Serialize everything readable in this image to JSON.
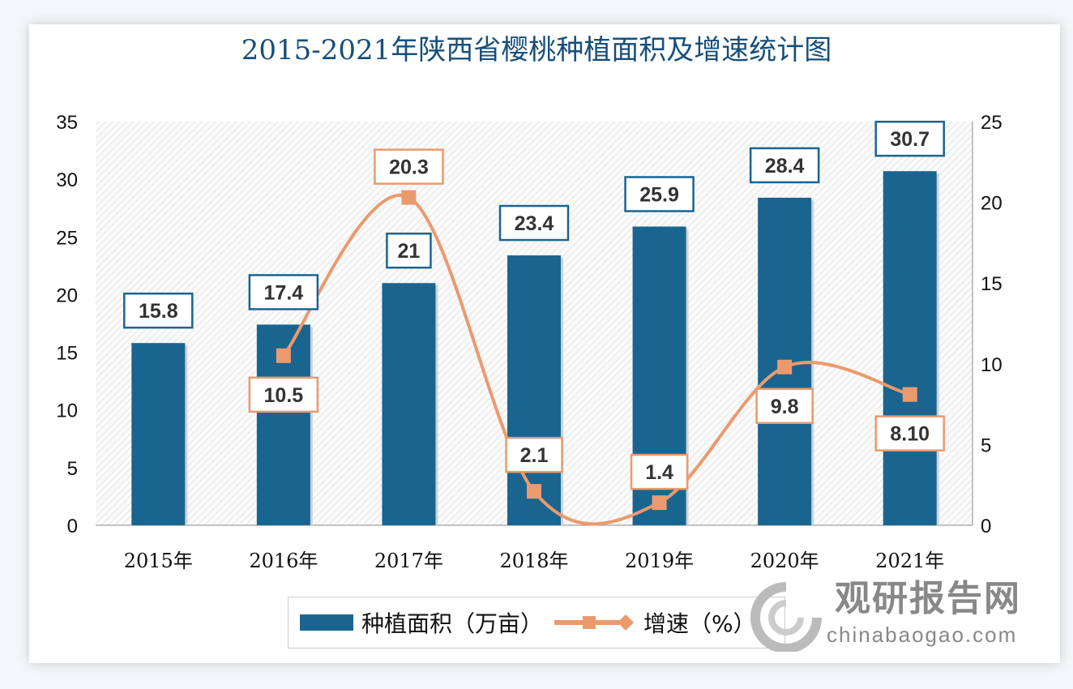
{
  "chart_data": {
    "type": "bar",
    "title": "2015-2021年陕西省樱桃种植面积及增速统计图",
    "categories": [
      "2015年",
      "2016年",
      "2017年",
      "2018年",
      "2019年",
      "2020年",
      "2021年"
    ],
    "series": [
      {
        "name": "种植面积（万亩）",
        "type": "bar",
        "axis": "left",
        "values": [
          15.8,
          17.4,
          21,
          23.4,
          25.9,
          28.4,
          30.7
        ],
        "labels": [
          "15.8",
          "17.4",
          "21",
          "23.4",
          "25.9",
          "28.4",
          "30.7"
        ],
        "color": "#1a6590"
      },
      {
        "name": "增速（%）",
        "type": "line",
        "smooth": true,
        "axis": "right",
        "values": [
          null,
          10.5,
          20.3,
          2.1,
          1.4,
          9.8,
          8.1
        ],
        "labels": [
          "",
          "10.5",
          "20.3",
          "2.1",
          "1.4",
          "9.8",
          "8.10"
        ],
        "color": "#eb9a6e"
      }
    ],
    "yleft": {
      "lim": [
        0,
        35
      ],
      "ticks": [
        "0",
        "5",
        "10",
        "15",
        "20",
        "25",
        "30",
        "35"
      ]
    },
    "yright": {
      "lim": [
        0,
        25
      ],
      "ticks": [
        "0",
        "5",
        "10",
        "15",
        "20",
        "25"
      ]
    },
    "grid": false,
    "legend": "bottom"
  },
  "watermark": {
    "cn": "观研报告网",
    "en": "chinabaogao.com"
  }
}
